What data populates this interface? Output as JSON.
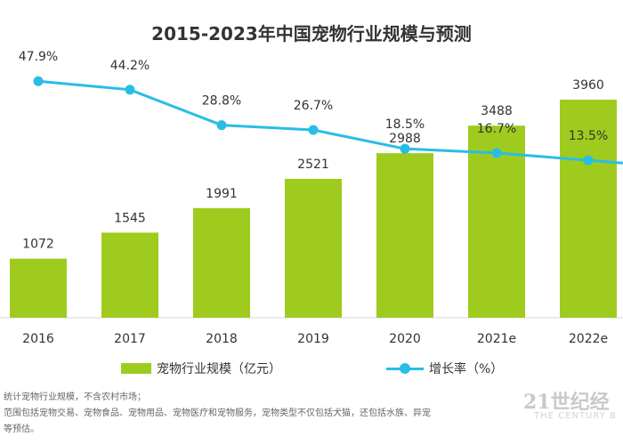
{
  "chart_data": {
    "type": "bar",
    "title": "2015-2023年中国宠物行业规模与预测",
    "categories": [
      "2016",
      "2017",
      "2018",
      "2019",
      "2020",
      "2021e",
      "2022e"
    ],
    "series": [
      {
        "name": "宠物行业规模（亿元）",
        "type": "bar",
        "values": [
          1072,
          1545,
          1991,
          2521,
          2988,
          3488,
          3960
        ]
      },
      {
        "name": "增长率（%）",
        "type": "line",
        "values": [
          47.9,
          44.2,
          28.8,
          26.7,
          18.5,
          16.7,
          13.5
        ],
        "value_labels": [
          "47.9%",
          "44.2%",
          "28.8%",
          "26.7%",
          "18.5%",
          "16.7%",
          "13.5%"
        ]
      }
    ],
    "ylim_bar": [
      0,
      4800
    ],
    "ylim_line": [
      -55,
      60
    ],
    "grid": false,
    "legend_placement": "bottom"
  },
  "colors": {
    "bar": "#9ecb1e",
    "line": "#29bde6",
    "text": "#333333"
  },
  "notes": [
    "统计宠物行业规模，不含农村市场；",
    "范围包括宠物交易、宠物食品、宠物用品、宠物医疗和宠物服务，宠物类型不仅包括犬猫，还包括水族、异宠",
    "等预估。"
  ],
  "watermark": {
    "main": "21世纪经",
    "sub": "THE CENTURY B"
  }
}
